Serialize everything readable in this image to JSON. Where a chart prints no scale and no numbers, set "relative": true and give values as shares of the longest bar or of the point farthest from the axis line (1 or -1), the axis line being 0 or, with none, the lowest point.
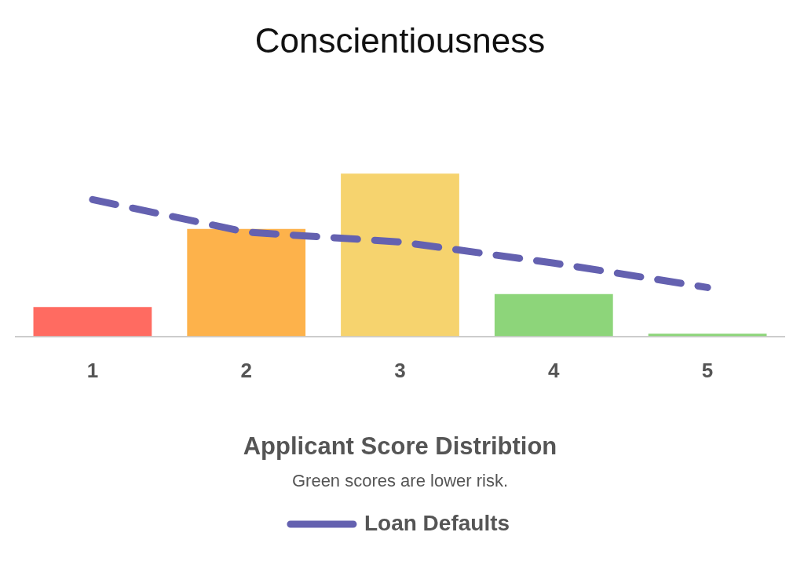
{
  "chart_data": {
    "type": "bar",
    "title": "Conscientiousness",
    "xlabel": "Applicant Score Distribtion",
    "annotations": [
      "Green scores are lower risk."
    ],
    "categories": [
      "1",
      "2",
      "3",
      "4",
      "5"
    ],
    "relative": true,
    "legend": "bottom",
    "grid": false,
    "series": [
      {
        "colors": [
          "#ff6b61",
          "#fdb24b",
          "#f6d36e",
          "#8dd57a",
          "#8dd57a"
        ],
        "values": [
          0.18,
          0.66,
          1,
          0.26,
          0.016
        ]
      },
      {
        "type": "line",
        "name": "Loan Defaults",
        "color": "#6461b0",
        "line_style": "dashed",
        "marker": "none",
        "values": [
          0.84,
          0.64,
          0.58,
          0.45,
          0.3
        ]
      }
    ]
  }
}
